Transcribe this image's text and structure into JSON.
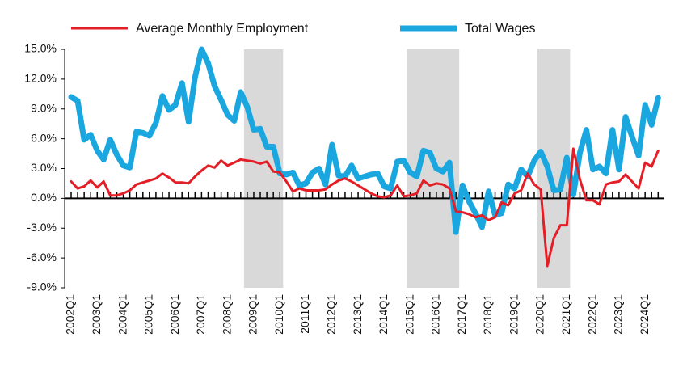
{
  "chart_data": {
    "type": "line",
    "categories": [
      "2002Q1",
      null,
      null,
      null,
      "2003Q1",
      null,
      null,
      null,
      "2004Q1",
      null,
      null,
      null,
      "2005Q1",
      null,
      null,
      null,
      "2006Q1",
      null,
      null,
      null,
      "2007Q1",
      null,
      null,
      null,
      "2008Q1",
      null,
      null,
      null,
      "2009Q1",
      null,
      null,
      null,
      "2010Q1",
      null,
      null,
      null,
      "2011Q1",
      null,
      null,
      null,
      "2012Q1",
      null,
      null,
      null,
      "2013Q1",
      null,
      null,
      null,
      "2014Q1",
      null,
      null,
      null,
      "2015Q1",
      null,
      null,
      null,
      "2016Q1",
      null,
      null,
      null,
      "2017Q1",
      null,
      null,
      null,
      "2018Q1",
      null,
      null,
      null,
      "2019Q1",
      null,
      null,
      null,
      "2020Q1",
      null,
      null,
      null,
      "2021Q1",
      null,
      null,
      null,
      "2022Q1",
      null,
      null,
      null,
      "2023Q1",
      null,
      null,
      null,
      "2024Q1",
      null,
      null
    ],
    "series": [
      {
        "name": "Average Monthly Employment",
        "color": "#e41e26",
        "width": 3,
        "values": [
          1.7,
          1.0,
          1.2,
          1.8,
          1.1,
          1.7,
          0.3,
          0.3,
          0.5,
          0.8,
          1.4,
          1.6,
          1.8,
          2.0,
          2.5,
          2.1,
          1.6,
          1.6,
          1.5,
          2.2,
          2.8,
          3.3,
          3.1,
          3.8,
          3.3,
          3.6,
          3.9,
          3.8,
          3.7,
          3.5,
          3.7,
          2.7,
          2.6,
          1.7,
          0.7,
          1.0,
          0.8,
          0.8,
          0.8,
          0.9,
          1.4,
          1.8,
          2.0,
          1.7,
          1.3,
          0.9,
          0.5,
          0.2,
          0.1,
          0.3,
          1.3,
          0.2,
          0.3,
          0.5,
          1.8,
          1.3,
          1.5,
          1.4,
          1.0,
          -1.3,
          -1.4,
          -1.6,
          -1.9,
          -1.7,
          -2.2,
          -1.9,
          -0.4,
          -0.7,
          0.5,
          0.8,
          2.5,
          1.4,
          0.9,
          -6.8,
          -4.0,
          -2.7,
          -2.7,
          5.0,
          1.9,
          -0.2,
          -0.2,
          -0.6,
          1.4,
          1.6,
          1.7,
          2.4,
          1.7,
          1.0,
          3.6,
          3.2,
          4.8
        ]
      },
      {
        "name": "Total Wages",
        "color": "#1aa7e0",
        "width": 7,
        "values": [
          10.2,
          9.8,
          5.9,
          6.4,
          4.8,
          3.9,
          5.9,
          4.4,
          3.3,
          3.1,
          6.7,
          6.6,
          6.3,
          7.6,
          10.3,
          8.9,
          9.4,
          11.6,
          7.7,
          12.2,
          15.0,
          13.6,
          11.3,
          9.9,
          8.4,
          7.8,
          10.7,
          9.2,
          6.9,
          7.0,
          5.2,
          5.2,
          2.5,
          2.4,
          2.6,
          1.3,
          1.5,
          2.6,
          3.0,
          1.4,
          5.4,
          2.3,
          2.2,
          3.3,
          2.0,
          2.2,
          2.4,
          2.5,
          1.2,
          1.0,
          3.7,
          3.8,
          2.6,
          2.2,
          4.8,
          4.6,
          3.0,
          2.7,
          3.6,
          -3.4,
          1.3,
          -0.3,
          -1.5,
          -2.9,
          0.7,
          -1.7,
          -1.5,
          1.4,
          1.0,
          2.9,
          2.2,
          3.8,
          4.7,
          3.2,
          0.8,
          0.9,
          4.1,
          0.4,
          4.6,
          6.9,
          2.9,
          3.2,
          2.5,
          6.9,
          2.9,
          8.2,
          6.2,
          4.3,
          9.4,
          7.4,
          10.1
        ]
      }
    ],
    "shaded_periods": [
      {
        "from": 27,
        "to": 32
      },
      {
        "from": 52,
        "to": 59
      },
      {
        "from": 72,
        "to": 76
      }
    ],
    "shade_color": "#d9d9d9",
    "ylim": [
      -9,
      15
    ],
    "yticks": [
      {
        "value": -9,
        "label": "-9.0%"
      },
      {
        "value": -6,
        "label": "-6.0%"
      },
      {
        "value": -3,
        "label": "-3.0%"
      },
      {
        "value": 0,
        "label": "0.0%"
      },
      {
        "value": 3,
        "label": "3.0%"
      },
      {
        "value": 6,
        "label": "6.0%"
      },
      {
        "value": 9,
        "label": "9.0%"
      },
      {
        "value": 12,
        "label": "12.0%"
      },
      {
        "value": 15,
        "label": "15.0%"
      }
    ],
    "grid": false
  }
}
